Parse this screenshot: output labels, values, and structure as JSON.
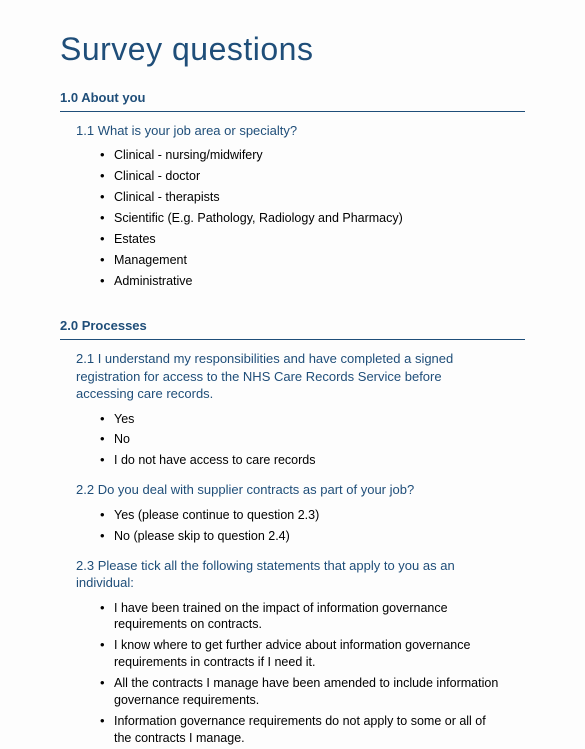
{
  "page": {
    "title": "Survey questions",
    "title_color": "#1f4e79",
    "title_fontsize": 32,
    "body_fontsize": 13,
    "accent_color": "#1f4e79",
    "background_color": "#fdfdfd",
    "text_color": "#000000"
  },
  "sections": [
    {
      "number": "1.0",
      "heading": "About you",
      "questions": [
        {
          "number": "1.1",
          "text": "What is your job area or specialty?",
          "options": [
            "Clinical - nursing/midwifery",
            "Clinical - doctor",
            "Clinical - therapists",
            "Scientific (E.g. Pathology, Radiology and Pharmacy)",
            "Estates",
            "Management",
            "Administrative"
          ]
        }
      ]
    },
    {
      "number": "2.0",
      "heading": "Processes",
      "questions": [
        {
          "number": "2.1",
          "text": "I understand my responsibilities and have completed a signed registration for access to the NHS Care Records Service before accessing care records.",
          "options": [
            "Yes",
            "No",
            "I do not have access to care records"
          ]
        },
        {
          "number": "2.2",
          "text": "Do you deal with supplier contracts as part of your job?",
          "options": [
            "Yes (please continue to question 2.3)",
            "No (please skip to question 2.4)"
          ]
        },
        {
          "number": "2.3",
          "text": "Please tick all the following statements that apply to you as an individual:",
          "options": [
            "I have been trained on the impact of information governance requirements on contracts.",
            "I know where to get further advice about information governance requirements in contracts if I need it.",
            "All the contracts I manage have been amended to include information governance requirements.",
            "Information governance requirements do not apply to some or all of the contracts I manage."
          ]
        }
      ]
    }
  ]
}
